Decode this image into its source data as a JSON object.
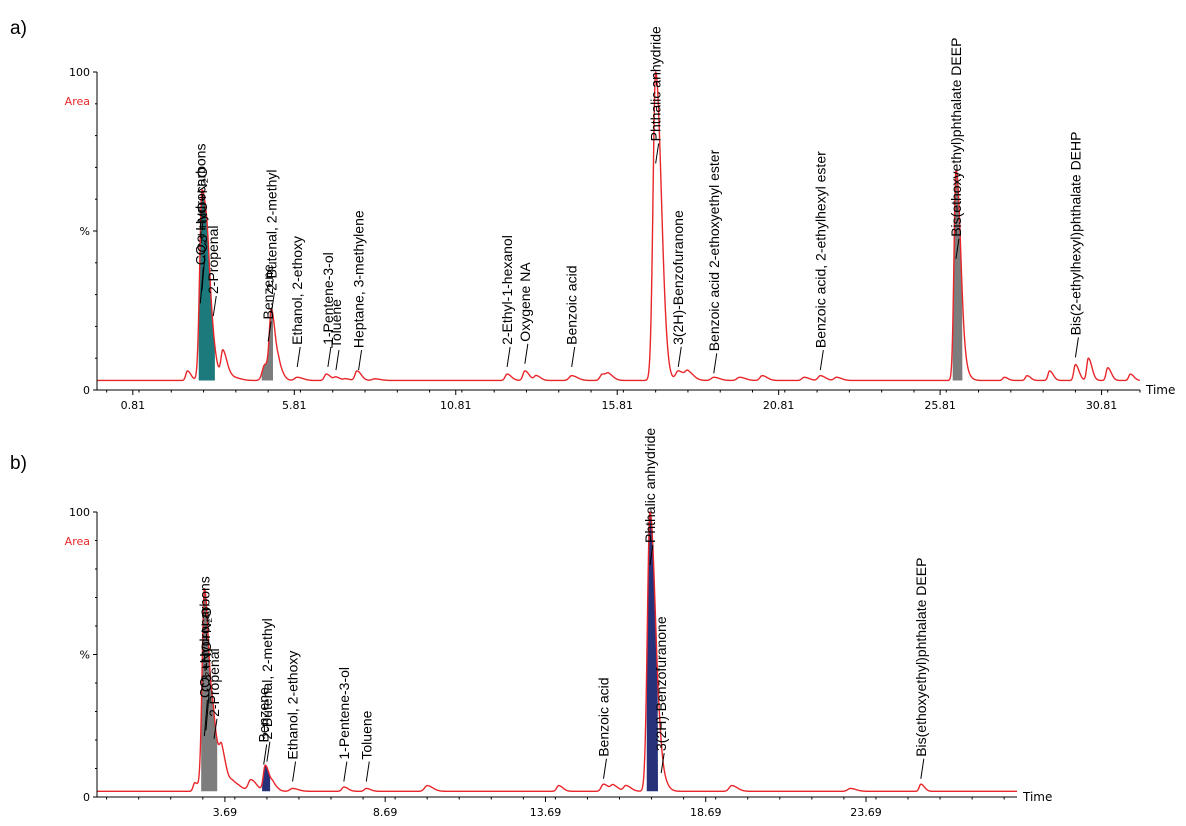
{
  "colors": {
    "trace": "#e8262a",
    "fill_gray": "#7d7d7d",
    "fill_teal": "#1c7a7d",
    "fill_blue": "#27317a",
    "axis": "#000000"
  },
  "chart_data": [
    {
      "panel_label": "a)",
      "type": "line",
      "title": "",
      "ylabel": "%",
      "ylabel_extra": "Area",
      "xlabel": "Time",
      "y_ticks": [
        "100",
        "%",
        "0"
      ],
      "xlim": [
        -0.3,
        32.0
      ],
      "ylim": [
        0,
        100
      ],
      "x_ticks": [
        0.81,
        5.81,
        10.81,
        15.81,
        20.81,
        25.81,
        30.81
      ],
      "x_tick_labels": [
        "0.81",
        "5.81",
        "10.81",
        "15.81",
        "20.81",
        "25.81",
        "30.81"
      ],
      "baseline": 3,
      "peaks": [
        {
          "x": 2.5,
          "y": 6,
          "w": 0.05
        },
        {
          "x": 2.95,
          "y": 62,
          "w": 0.07
        },
        {
          "x": 3.15,
          "y": 20,
          "w": 0.08
        },
        {
          "x": 3.6,
          "y": 12,
          "w": 0.06
        },
        {
          "x": 3.9,
          "y": 4,
          "w": 0.1
        },
        {
          "x": 4.4,
          "y": 3,
          "w": 0.1
        },
        {
          "x": 4.9,
          "y": 8,
          "w": 0.08
        },
        {
          "x": 5.1,
          "y": 23,
          "w": 0.06
        },
        {
          "x": 5.35,
          "y": 6,
          "w": 0.06
        },
        {
          "x": 5.9,
          "y": 4,
          "w": 0.08
        },
        {
          "x": 6.8,
          "y": 5,
          "w": 0.06
        },
        {
          "x": 7.1,
          "y": 4,
          "w": 0.06
        },
        {
          "x": 7.4,
          "y": 3.5,
          "w": 0.06
        },
        {
          "x": 7.75,
          "y": 6,
          "w": 0.06
        },
        {
          "x": 8.3,
          "y": 3.5,
          "w": 0.08
        },
        {
          "x": 12.4,
          "y": 5,
          "w": 0.06
        },
        {
          "x": 12.95,
          "y": 6,
          "w": 0.06
        },
        {
          "x": 13.3,
          "y": 4.5,
          "w": 0.06
        },
        {
          "x": 14.4,
          "y": 4.5,
          "w": 0.08
        },
        {
          "x": 15.35,
          "y": 5,
          "w": 0.07
        },
        {
          "x": 15.55,
          "y": 4.5,
          "w": 0.07
        },
        {
          "x": 17.0,
          "y": 100,
          "w": 0.08
        },
        {
          "x": 17.7,
          "y": 6,
          "w": 0.08
        },
        {
          "x": 18.0,
          "y": 5.5,
          "w": 0.08
        },
        {
          "x": 18.8,
          "y": 4,
          "w": 0.08
        },
        {
          "x": 19.6,
          "y": 4,
          "w": 0.08
        },
        {
          "x": 20.3,
          "y": 4.5,
          "w": 0.07
        },
        {
          "x": 21.6,
          "y": 4,
          "w": 0.07
        },
        {
          "x": 22.1,
          "y": 4.5,
          "w": 0.07
        },
        {
          "x": 22.6,
          "y": 4,
          "w": 0.07
        },
        {
          "x": 26.3,
          "y": 68,
          "w": 0.06
        },
        {
          "x": 26.45,
          "y": 9,
          "w": 0.08
        },
        {
          "x": 27.8,
          "y": 4,
          "w": 0.05
        },
        {
          "x": 28.5,
          "y": 4.5,
          "w": 0.05
        },
        {
          "x": 29.2,
          "y": 6,
          "w": 0.05
        },
        {
          "x": 30.0,
          "y": 8,
          "w": 0.05
        },
        {
          "x": 30.4,
          "y": 10,
          "w": 0.05
        },
        {
          "x": 31.0,
          "y": 7,
          "w": 0.05
        },
        {
          "x": 31.7,
          "y": 5,
          "w": 0.05
        }
      ],
      "fills": [
        {
          "x0": 2.85,
          "x1": 3.35,
          "color": "teal"
        },
        {
          "x0": 4.8,
          "x1": 5.15,
          "color": "gray"
        },
        {
          "x0": 26.2,
          "x1": 26.5,
          "color": "gray"
        }
      ],
      "annotations": [
        {
          "text": "CO₂+Hydrocarbons",
          "x": 2.9,
          "y": 26
        },
        {
          "text": "C3 +NO+N₂O",
          "x": 2.95,
          "y": 30
        },
        {
          "text": "2-Propenal",
          "x": 3.3,
          "y": 22
        },
        {
          "text": "Benzene",
          "x": 5.0,
          "y": 14
        },
        {
          "text": "2-Butenal, 2-methyl",
          "x": 5.1,
          "y": 23
        },
        {
          "text": "Ethanol, 2-ethoxy",
          "x": 5.9,
          "y": 6
        },
        {
          "text": "1-Pentene-3-ol",
          "x": 6.85,
          "y": 6
        },
        {
          "text": "Toluene",
          "x": 7.1,
          "y": 5
        },
        {
          "text": "Heptane, 3-methylene",
          "x": 7.8,
          "y": 5
        },
        {
          "text": "2-Ethyl-1-hexanol",
          "x": 12.4,
          "y": 6
        },
        {
          "text": "Oxygene NA",
          "x": 12.95,
          "y": 7
        },
        {
          "text": "Benzoic acid",
          "x": 14.4,
          "y": 6
        },
        {
          "text": "Phthalic anhydride",
          "x": 17.0,
          "y": 70
        },
        {
          "text": "3(2H)-Benzofuranone",
          "x": 17.7,
          "y": 6
        },
        {
          "text": "Benzoic acid 2-ethoxyethyl ester",
          "x": 18.8,
          "y": 4
        },
        {
          "text": "Benzoic acid, 2-ethylhexyl ester",
          "x": 22.1,
          "y": 5
        },
        {
          "text": "Bis(ethoxyethyl)phthalate DEEP",
          "x": 26.3,
          "y": 40
        },
        {
          "text": "Bis(2-ethylhexyl)phthalate DEHP",
          "x": 30.0,
          "y": 9
        }
      ]
    },
    {
      "panel_label": "b)",
      "type": "line",
      "title": "",
      "ylabel": "%",
      "ylabel_extra": "Area",
      "xlabel": "Time",
      "y_ticks": [
        "100",
        "%",
        "0"
      ],
      "xlim": [
        -0.3,
        28.4
      ],
      "ylim": [
        0,
        100
      ],
      "x_ticks": [
        3.69,
        8.69,
        13.69,
        18.69,
        23.69
      ],
      "x_tick_labels": [
        "3.69",
        "8.69",
        "13.69",
        "18.69",
        "23.69"
      ],
      "baseline": 2,
      "peaks": [
        {
          "x": 2.75,
          "y": 5,
          "w": 0.05
        },
        {
          "x": 3.05,
          "y": 73,
          "w": 0.07
        },
        {
          "x": 3.35,
          "y": 19,
          "w": 0.08
        },
        {
          "x": 3.6,
          "y": 12,
          "w": 0.07
        },
        {
          "x": 3.95,
          "y": 5,
          "w": 0.1
        },
        {
          "x": 4.5,
          "y": 6,
          "w": 0.08
        },
        {
          "x": 4.95,
          "y": 11,
          "w": 0.06
        },
        {
          "x": 5.2,
          "y": 4,
          "w": 0.06
        },
        {
          "x": 5.8,
          "y": 3,
          "w": 0.08
        },
        {
          "x": 7.4,
          "y": 3.5,
          "w": 0.06
        },
        {
          "x": 8.1,
          "y": 3,
          "w": 0.06
        },
        {
          "x": 10.0,
          "y": 4,
          "w": 0.08
        },
        {
          "x": 14.1,
          "y": 4,
          "w": 0.06
        },
        {
          "x": 15.5,
          "y": 4.5,
          "w": 0.07
        },
        {
          "x": 15.8,
          "y": 4,
          "w": 0.07
        },
        {
          "x": 16.2,
          "y": 4,
          "w": 0.07
        },
        {
          "x": 16.95,
          "y": 100,
          "w": 0.08
        },
        {
          "x": 17.3,
          "y": 6,
          "w": 0.08
        },
        {
          "x": 19.5,
          "y": 4,
          "w": 0.08
        },
        {
          "x": 23.2,
          "y": 3,
          "w": 0.08
        },
        {
          "x": 25.4,
          "y": 4.5,
          "w": 0.05
        }
      ],
      "fills": [
        {
          "x0": 2.95,
          "x1": 3.45,
          "color": "gray"
        },
        {
          "x0": 4.85,
          "x1": 5.1,
          "color": "blue"
        },
        {
          "x0": 16.85,
          "x1": 17.2,
          "color": "blue"
        }
      ],
      "annotations": [
        {
          "text": "CO₂+Hydrocarbons",
          "x": 3.05,
          "y": 20
        },
        {
          "text": "C3 +NO+N₂O",
          "x": 3.1,
          "y": 22
        },
        {
          "text": "2-Propenal",
          "x": 3.35,
          "y": 19
        },
        {
          "text": "Benzene",
          "x": 4.9,
          "y": 10
        },
        {
          "text": "2-Butenal, 2-methyl",
          "x": 5.0,
          "y": 11
        },
        {
          "text": "Ethanol, 2-ethoxy",
          "x": 5.8,
          "y": 4
        },
        {
          "text": "1-Pentene-3-ol",
          "x": 7.4,
          "y": 4
        },
        {
          "text": "Toluene",
          "x": 8.1,
          "y": 4
        },
        {
          "text": "Benzoic acid",
          "x": 15.5,
          "y": 5
        },
        {
          "text": "Phthalic anhydride",
          "x": 16.95,
          "y": 80
        },
        {
          "text": "3(2H)-Benzofuranone",
          "x": 17.3,
          "y": 7
        },
        {
          "text": "Bis(ethoxyethyl)phthalate DEEP",
          "x": 25.4,
          "y": 5
        }
      ]
    }
  ]
}
